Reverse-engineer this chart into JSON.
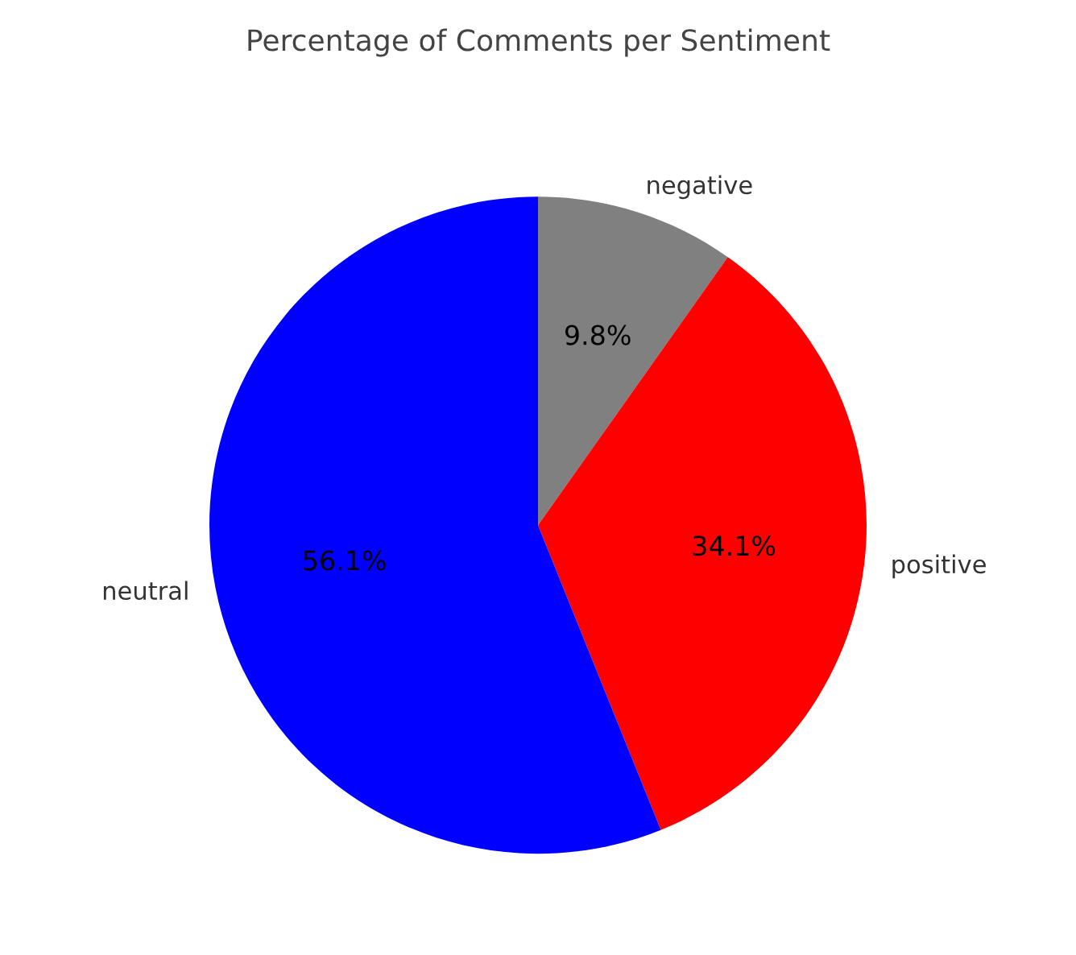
{
  "chart_data": {
    "type": "pie",
    "title": "Percentage of Comments per Sentiment",
    "categories": [
      "negative",
      "positive",
      "neutral"
    ],
    "values": [
      9.8,
      34.1,
      56.1
    ],
    "value_labels": [
      "9.8%",
      "34.1%",
      "56.1%"
    ],
    "colors": [
      "#808080",
      "#ff0000",
      "#0000ff"
    ]
  }
}
